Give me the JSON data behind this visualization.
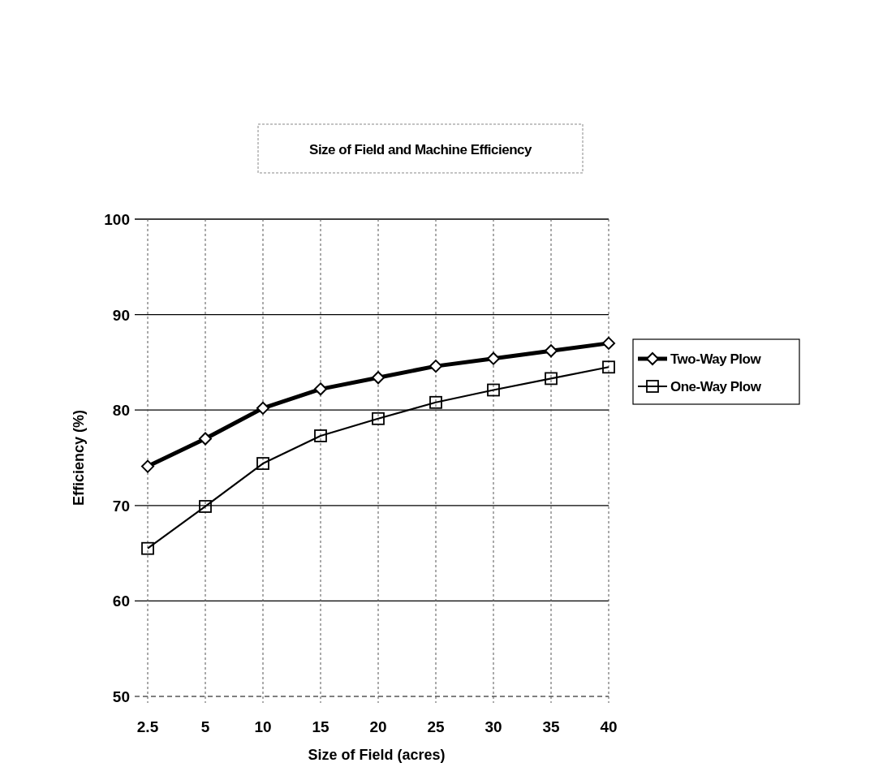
{
  "chart_data": {
    "type": "line",
    "title": "Size of Field and Machine Efficiency",
    "xlabel": "Size of Field (acres)",
    "ylabel": "Efficiency (%)",
    "categories": [
      "2.5",
      "5",
      "10",
      "15",
      "20",
      "25",
      "30",
      "35",
      "40"
    ],
    "series": [
      {
        "name": "Two-Way Plow",
        "color": "#000000",
        "marker": "diamond",
        "values": [
          74.1,
          77.0,
          80.2,
          82.2,
          83.4,
          84.6,
          85.4,
          86.2,
          87.0
        ]
      },
      {
        "name": "One-Way Plow",
        "color": "#000000",
        "marker": "square",
        "values": [
          65.5,
          69.9,
          74.4,
          77.3,
          79.1,
          80.8,
          82.1,
          83.3,
          84.5
        ]
      }
    ],
    "ylim": [
      50,
      100
    ],
    "yticks": [
      50,
      60,
      70,
      80,
      90,
      100
    ],
    "grid": true,
    "legend": "right"
  }
}
